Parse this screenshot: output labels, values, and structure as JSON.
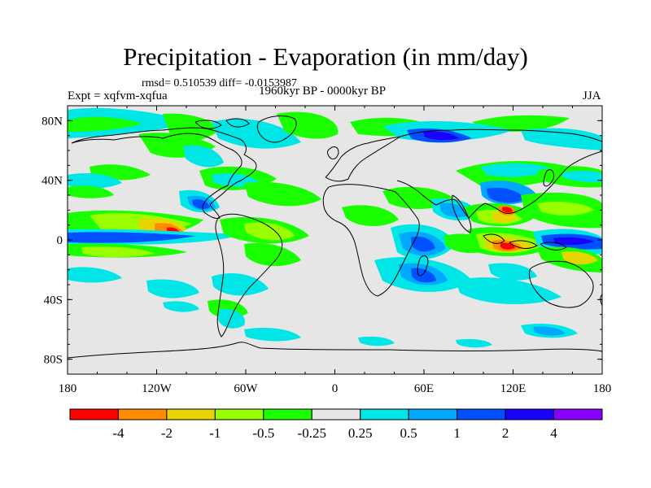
{
  "header": {
    "title": "Precipitation - Evaporation (in mm/day)",
    "stats": "rmsd= 0.510539 diff= -0.0153987",
    "experiment": "Expt = xqfvm-xqfua",
    "period": "1960kyr BP - 0000kyr BP",
    "season": "JJA"
  },
  "map": {
    "lat_ticks": [
      {
        "value": 80,
        "label": "80N"
      },
      {
        "value": 40,
        "label": "40N"
      },
      {
        "value": 0,
        "label": "0"
      },
      {
        "value": -40,
        "label": "40S"
      },
      {
        "value": -80,
        "label": "80S"
      }
    ],
    "lon_ticks": [
      {
        "value": -180,
        "label": "180"
      },
      {
        "value": -120,
        "label": "120W"
      },
      {
        "value": -60,
        "label": "60W"
      },
      {
        "value": 0,
        "label": "0"
      },
      {
        "value": 60,
        "label": "60E"
      },
      {
        "value": 120,
        "label": "120E"
      },
      {
        "value": 180,
        "label": "180"
      }
    ],
    "colors": {
      "background": "#e6e6e6",
      "coast": "#000000",
      "red": "#ff0000",
      "orange": "#ff8c00",
      "yellow": "#e6d500",
      "light_green": "#99ff00",
      "green": "#19ff00",
      "cyan": "#00e5e5",
      "sky": "#00a8ff",
      "blue": "#0050ff",
      "dark_blue": "#1a00ff",
      "purple": "#8800ff"
    }
  },
  "colorbar": {
    "colors": [
      "#ff0000",
      "#ff8c00",
      "#e6d500",
      "#99ff00",
      "#19ff00",
      "#e6e6e6",
      "#00e5e5",
      "#00a8ff",
      "#0050ff",
      "#1a00ff",
      "#8800ff"
    ],
    "labels": [
      "-4",
      "-2",
      "-1",
      "-0.5",
      "-0.25",
      "0.25",
      "0.5",
      "1",
      "2",
      "4"
    ]
  }
}
